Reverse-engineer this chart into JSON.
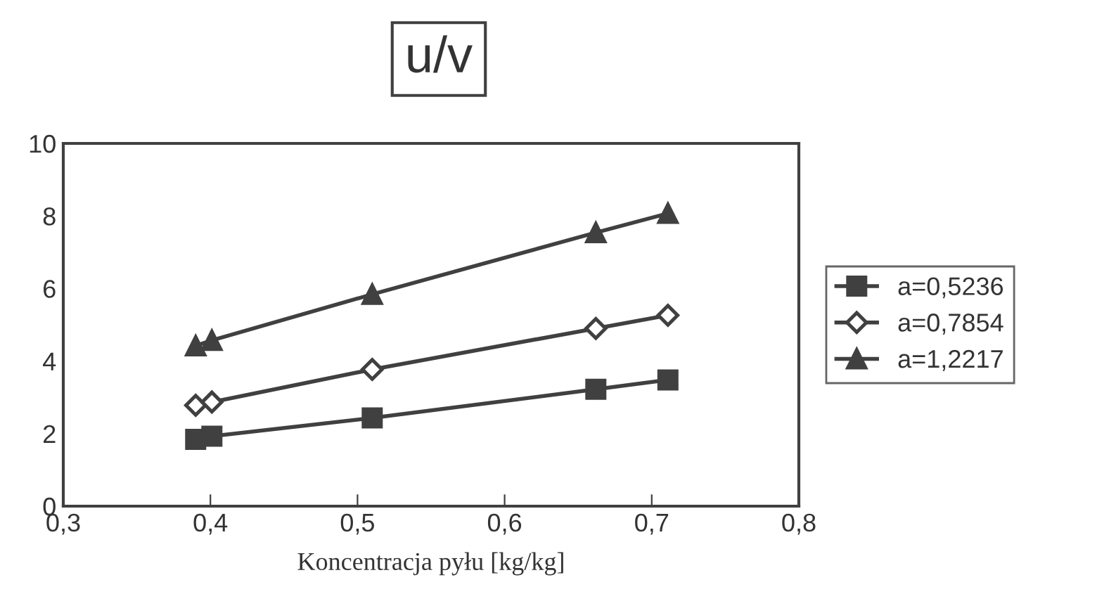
{
  "chart_data": {
    "type": "line",
    "title": "u/v",
    "xlabel": "Koncentracja pyłu [kg/kg]",
    "x": [
      0.39,
      0.401,
      0.51,
      0.662,
      0.711
    ],
    "series": [
      {
        "name": "a=0,5236",
        "color": "#404040",
        "marker": "square",
        "values": [
          1.84,
          1.93,
          2.43,
          3.22,
          3.48
        ]
      },
      {
        "name": "a=0,7854",
        "color": "#404040",
        "marker": "diamond",
        "values": [
          2.78,
          2.87,
          3.77,
          4.9,
          5.26
        ]
      },
      {
        "name": "a=1,2217",
        "color": "#404040",
        "marker": "triangle",
        "values": [
          4.42,
          4.57,
          5.84,
          7.54,
          8.07
        ]
      }
    ],
    "xlim": [
      0.3,
      0.8
    ],
    "xticks": [
      {
        "value": 0.3,
        "label": "0,3"
      },
      {
        "value": 0.4,
        "label": "0,4"
      },
      {
        "value": 0.5,
        "label": "0,5"
      },
      {
        "value": 0.6,
        "label": "0,6"
      },
      {
        "value": 0.7,
        "label": "0,7"
      },
      {
        "value": 0.8,
        "label": "0,8"
      }
    ],
    "ylim": [
      0,
      10
    ],
    "yticks": [
      0,
      2,
      4,
      6,
      8,
      10
    ],
    "grid": false,
    "legend": "right",
    "line_style": "solid"
  }
}
